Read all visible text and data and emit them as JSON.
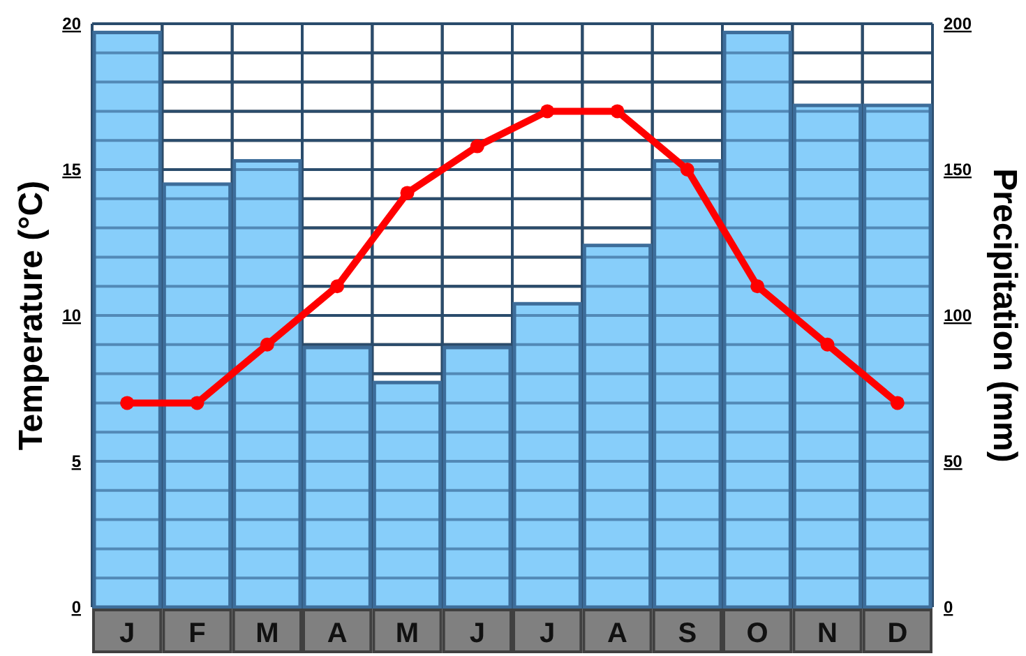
{
  "chart_data": {
    "type": "bar",
    "ylabel": "Temperature (°C)",
    "y2label": "Precipitation (mm)",
    "categories": [
      "J",
      "F",
      "M",
      "A",
      "M",
      "J",
      "J",
      "A",
      "S",
      "O",
      "N",
      "D"
    ],
    "series": [
      {
        "axis": "y2",
        "color": "#87cefa",
        "values": [
          197,
          145,
          153,
          89,
          77,
          89,
          104,
          124,
          153,
          197,
          172,
          172
        ]
      },
      {
        "type": "line",
        "axis": "y",
        "color": "#ff0000",
        "marker": "circle",
        "values": [
          7.0,
          7.0,
          9.0,
          11.0,
          14.2,
          15.8,
          17.0,
          17.0,
          15.0,
          11.0,
          9.0,
          7.0
        ]
      }
    ],
    "ylim": [
      0,
      20
    ],
    "yticks": [
      0,
      {
        "value": 1,
        "label": null
      },
      {
        "value": 2,
        "label": null
      },
      {
        "value": 3,
        "label": null
      },
      {
        "value": 4,
        "label": null
      },
      5,
      {
        "value": 6,
        "label": null
      },
      {
        "value": 7,
        "label": null
      },
      {
        "value": 8,
        "label": null
      },
      {
        "value": 9,
        "label": null
      },
      10,
      {
        "value": 11,
        "label": null
      },
      {
        "value": 12,
        "label": null
      },
      {
        "value": 13,
        "label": null
      },
      {
        "value": 14,
        "label": null
      },
      15,
      {
        "value": 16,
        "label": null
      },
      {
        "value": 17,
        "label": null
      },
      {
        "value": 18,
        "label": null
      },
      {
        "value": 19,
        "label": null
      },
      20
    ],
    "y2lim": [
      0,
      200
    ],
    "y2ticks": [
      0,
      50,
      100,
      150,
      200
    ],
    "grid": true
  }
}
